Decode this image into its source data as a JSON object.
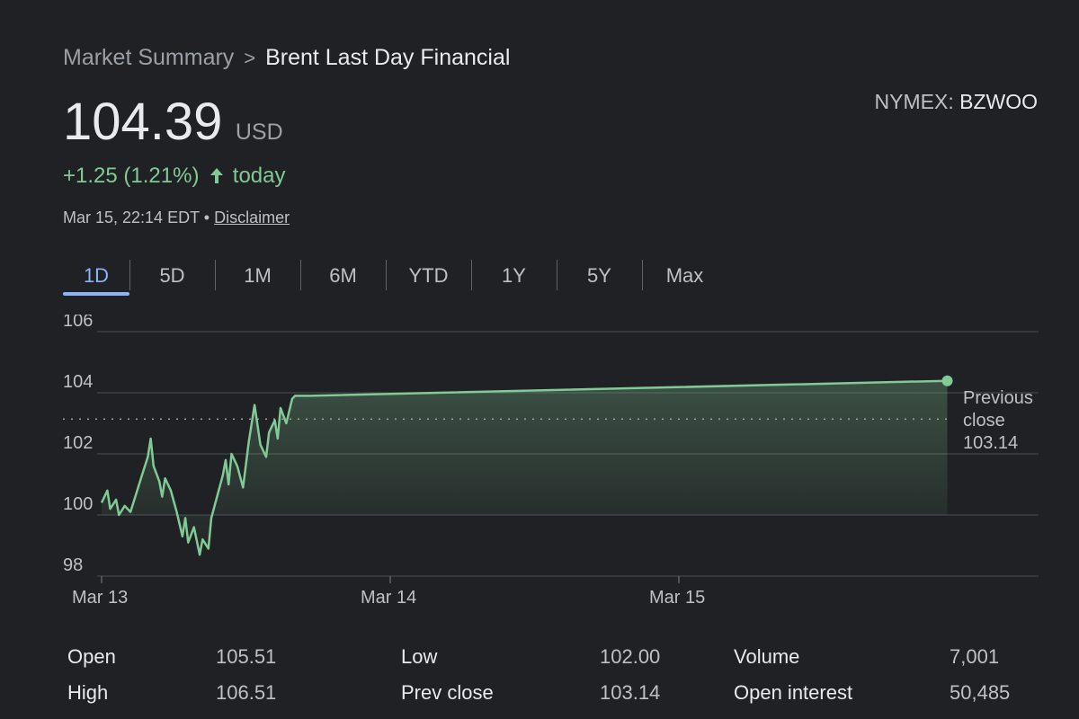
{
  "breadcrumb": {
    "parent": "Market Summary",
    "separator": ">",
    "current": "Brent Last Day Financial"
  },
  "exchange": {
    "market": "NYMEX",
    "symbol": "BZWOO"
  },
  "quote": {
    "price": "104.39",
    "currency": "USD",
    "change": "+1.25 (1.21%)",
    "change_suffix": "today",
    "timestamp": "Mar 15, 22:14 EDT",
    "bullet": "•",
    "disclaimer": "Disclaimer"
  },
  "tabs": [
    {
      "label": "1D",
      "active": true
    },
    {
      "label": "5D",
      "active": false
    },
    {
      "label": "1M",
      "active": false
    },
    {
      "label": "6M",
      "active": false
    },
    {
      "label": "YTD",
      "active": false
    },
    {
      "label": "1Y",
      "active": false
    },
    {
      "label": "5Y",
      "active": false
    },
    {
      "label": "Max",
      "active": false
    }
  ],
  "colors": {
    "line": "#81c995",
    "accent": "#8ab4f8",
    "background": "#202124"
  },
  "chart_data": {
    "type": "area",
    "ylim": [
      98,
      106
    ],
    "y_ticks": [
      "106",
      "104",
      "102",
      "100",
      "98"
    ],
    "x_ticks": [
      "Mar 13",
      "Mar 14",
      "Mar 15"
    ],
    "x_tick_positions": [
      0,
      1,
      2
    ],
    "xlim": [
      0,
      2.9
    ],
    "previous_close": {
      "label_line1": "Previous",
      "label_line2": "close",
      "value": "103.14",
      "y": 103.14
    },
    "series": [
      {
        "values_x": [
          0.0,
          0.02,
          0.03,
          0.05,
          0.06,
          0.08,
          0.1,
          0.12,
          0.14,
          0.16,
          0.17,
          0.18,
          0.2,
          0.21,
          0.22,
          0.24,
          0.26,
          0.28,
          0.29,
          0.3,
          0.32,
          0.34,
          0.35,
          0.37,
          0.38,
          0.4,
          0.42,
          0.43,
          0.44,
          0.45,
          0.47,
          0.49,
          0.51,
          0.52,
          0.53,
          0.55,
          0.57,
          0.58,
          0.6,
          0.61,
          0.62,
          0.64,
          0.66,
          0.67,
          0.68,
          0.7,
          0.71,
          0.72,
          2.93
        ],
        "values_y": [
          100.4,
          100.8,
          100.2,
          100.5,
          100.0,
          100.3,
          100.1,
          100.7,
          101.3,
          101.9,
          102.5,
          101.6,
          101.1,
          100.6,
          101.2,
          100.8,
          100.1,
          99.3,
          99.9,
          99.1,
          99.6,
          98.7,
          99.2,
          98.9,
          99.9,
          100.6,
          101.3,
          101.8,
          101.0,
          102.0,
          101.6,
          100.9,
          102.4,
          103.0,
          103.6,
          102.3,
          101.9,
          102.7,
          103.1,
          102.5,
          103.5,
          103.0,
          103.8,
          103.9,
          103.9,
          103.9,
          103.9,
          103.9,
          104.39
        ]
      }
    ]
  },
  "stats": [
    {
      "label": "Open",
      "value": "105.51"
    },
    {
      "label": "High",
      "value": "106.51"
    },
    {
      "label": "Low",
      "value": "102.00"
    },
    {
      "label": "Prev close",
      "value": "103.14"
    },
    {
      "label": "Volume",
      "value": "7,001"
    },
    {
      "label": "Open interest",
      "value": "50,485"
    }
  ]
}
